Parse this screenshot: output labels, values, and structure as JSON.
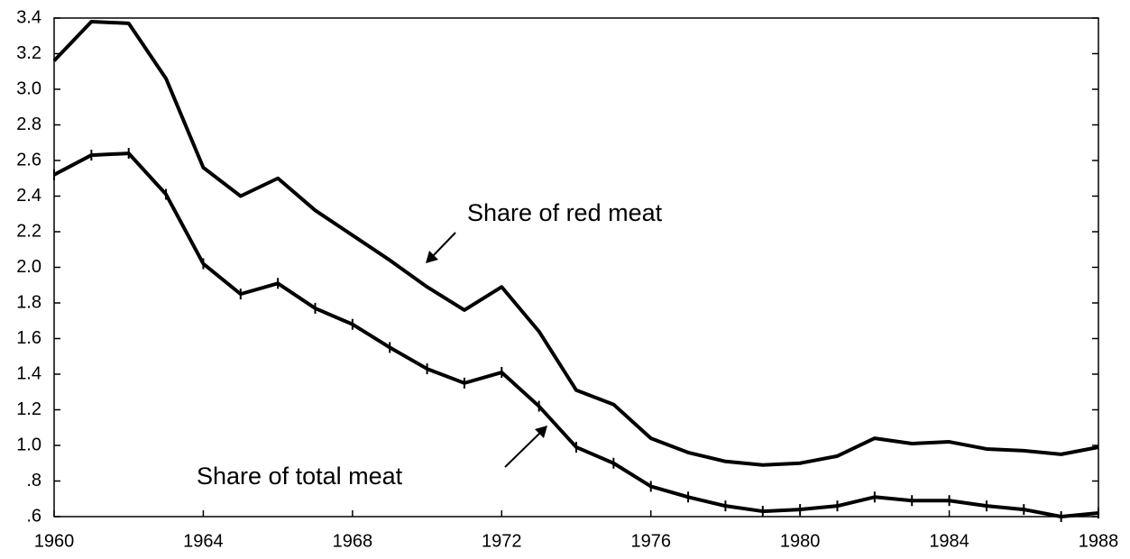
{
  "chart_data": {
    "type": "line",
    "x": [
      1960,
      1961,
      1962,
      1963,
      1964,
      1965,
      1966,
      1967,
      1968,
      1969,
      1970,
      1971,
      1972,
      1973,
      1974,
      1975,
      1976,
      1977,
      1978,
      1979,
      1980,
      1981,
      1982,
      1983,
      1984,
      1985,
      1986,
      1987,
      1988
    ],
    "series": [
      {
        "color": "#000000",
        "values": [
          3.16,
          3.38,
          3.37,
          3.06,
          2.56,
          2.4,
          2.5,
          2.32,
          2.18,
          2.04,
          1.89,
          1.76,
          1.89,
          1.64,
          1.31,
          1.23,
          1.04,
          0.96,
          0.91,
          0.89,
          0.9,
          0.94,
          1.04,
          1.01,
          1.02,
          0.98,
          0.97,
          0.95,
          0.99
        ]
      },
      {
        "color": "#000000",
        "markers": true,
        "values": [
          2.52,
          2.63,
          2.64,
          2.41,
          2.02,
          1.85,
          1.91,
          1.77,
          1.68,
          1.55,
          1.43,
          1.35,
          1.41,
          1.22,
          0.99,
          0.9,
          0.77,
          0.71,
          0.66,
          0.63,
          0.64,
          0.66,
          0.71,
          0.69,
          0.69,
          0.66,
          0.64,
          0.6,
          0.62
        ]
      }
    ],
    "annotations": [
      "Share of red meat",
      "Share of total meat"
    ],
    "xlim": [
      1960,
      1988
    ],
    "xticks": [
      1960,
      1964,
      1968,
      1972,
      1976,
      1980,
      1984,
      1988
    ],
    "ylim": [
      0.6,
      3.4
    ],
    "yticks": [
      {
        "value": 0.6,
        "label": ".6"
      },
      {
        "value": 0.8,
        "label": ".8"
      },
      {
        "value": 1,
        "label": "1.0"
      },
      1.2,
      1.4,
      1.6,
      1.8,
      {
        "value": 2,
        "label": "2.0"
      },
      2.2,
      2.4,
      2.6,
      2.8,
      {
        "value": 3,
        "label": "3.0"
      },
      3.2,
      3.4
    ],
    "grid": false
  }
}
